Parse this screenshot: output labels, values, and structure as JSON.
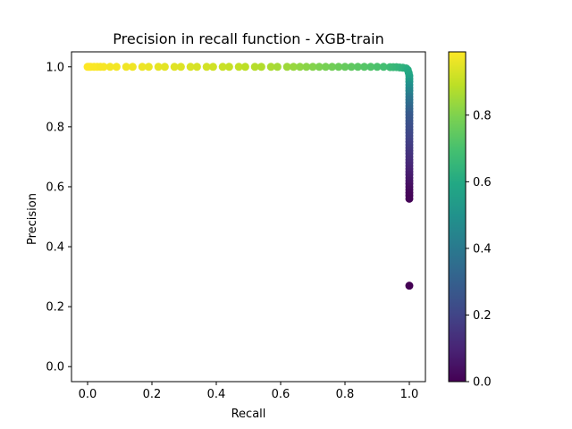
{
  "chart_data": {
    "type": "scatter",
    "title": "Precision in recall function - XGB-train",
    "xlabel": "Recall",
    "ylabel": "Precision",
    "xlim": [
      -0.05,
      1.05
    ],
    "ylim": [
      -0.05,
      1.05
    ],
    "xticks": [
      "0.0",
      "0.2",
      "0.4",
      "0.6",
      "0.8",
      "1.0"
    ],
    "yticks": [
      "0.0",
      "0.2",
      "0.4",
      "0.6",
      "0.8",
      "1.0"
    ],
    "xtick_values": [
      0.0,
      0.2,
      0.4,
      0.6,
      0.8,
      1.0
    ],
    "ytick_values": [
      0.0,
      0.2,
      0.4,
      0.6,
      0.8,
      1.0
    ],
    "grid": false,
    "colormap": "viridis",
    "colorbar": {
      "range": [
        0.0,
        0.99
      ],
      "ticks": [
        "0.0",
        "0.2",
        "0.4",
        "0.6",
        "0.8"
      ],
      "tick_values": [
        0.0,
        0.2,
        0.4,
        0.6,
        0.8
      ]
    },
    "series": [
      {
        "points": [
          {
            "x": 0.0,
            "y": 1.0,
            "c": 0.99
          },
          {
            "x": 0.005,
            "y": 1.0,
            "c": 0.99
          },
          {
            "x": 0.01,
            "y": 1.0,
            "c": 0.99
          },
          {
            "x": 0.02,
            "y": 1.0,
            "c": 0.985
          },
          {
            "x": 0.03,
            "y": 1.0,
            "c": 0.985
          },
          {
            "x": 0.04,
            "y": 1.0,
            "c": 0.98
          },
          {
            "x": 0.05,
            "y": 1.0,
            "c": 0.98
          },
          {
            "x": 0.07,
            "y": 1.0,
            "c": 0.975
          },
          {
            "x": 0.09,
            "y": 1.0,
            "c": 0.975
          },
          {
            "x": 0.12,
            "y": 1.0,
            "c": 0.97
          },
          {
            "x": 0.14,
            "y": 1.0,
            "c": 0.97
          },
          {
            "x": 0.17,
            "y": 1.0,
            "c": 0.965
          },
          {
            "x": 0.19,
            "y": 1.0,
            "c": 0.96
          },
          {
            "x": 0.22,
            "y": 1.0,
            "c": 0.955
          },
          {
            "x": 0.24,
            "y": 1.0,
            "c": 0.95
          },
          {
            "x": 0.27,
            "y": 1.0,
            "c": 0.945
          },
          {
            "x": 0.29,
            "y": 1.0,
            "c": 0.94
          },
          {
            "x": 0.32,
            "y": 1.0,
            "c": 0.935
          },
          {
            "x": 0.34,
            "y": 1.0,
            "c": 0.93
          },
          {
            "x": 0.37,
            "y": 1.0,
            "c": 0.925
          },
          {
            "x": 0.39,
            "y": 1.0,
            "c": 0.92
          },
          {
            "x": 0.42,
            "y": 1.0,
            "c": 0.91
          },
          {
            "x": 0.44,
            "y": 1.0,
            "c": 0.905
          },
          {
            "x": 0.47,
            "y": 1.0,
            "c": 0.9
          },
          {
            "x": 0.49,
            "y": 1.0,
            "c": 0.89
          },
          {
            "x": 0.52,
            "y": 1.0,
            "c": 0.88
          },
          {
            "x": 0.54,
            "y": 1.0,
            "c": 0.875
          },
          {
            "x": 0.57,
            "y": 1.0,
            "c": 0.865
          },
          {
            "x": 0.59,
            "y": 1.0,
            "c": 0.855
          },
          {
            "x": 0.62,
            "y": 1.0,
            "c": 0.845
          },
          {
            "x": 0.64,
            "y": 1.0,
            "c": 0.835
          },
          {
            "x": 0.66,
            "y": 1.0,
            "c": 0.825
          },
          {
            "x": 0.68,
            "y": 1.0,
            "c": 0.815
          },
          {
            "x": 0.7,
            "y": 1.0,
            "c": 0.805
          },
          {
            "x": 0.72,
            "y": 1.0,
            "c": 0.795
          },
          {
            "x": 0.74,
            "y": 1.0,
            "c": 0.785
          },
          {
            "x": 0.76,
            "y": 1.0,
            "c": 0.775
          },
          {
            "x": 0.78,
            "y": 1.0,
            "c": 0.765
          },
          {
            "x": 0.8,
            "y": 1.0,
            "c": 0.755
          },
          {
            "x": 0.82,
            "y": 1.0,
            "c": 0.745
          },
          {
            "x": 0.84,
            "y": 1.0,
            "c": 0.735
          },
          {
            "x": 0.86,
            "y": 1.0,
            "c": 0.725
          },
          {
            "x": 0.88,
            "y": 1.0,
            "c": 0.715
          },
          {
            "x": 0.9,
            "y": 1.0,
            "c": 0.705
          },
          {
            "x": 0.92,
            "y": 1.0,
            "c": 0.69
          },
          {
            "x": 0.94,
            "y": 0.999,
            "c": 0.675
          },
          {
            "x": 0.95,
            "y": 0.999,
            "c": 0.665
          },
          {
            "x": 0.96,
            "y": 0.999,
            "c": 0.655
          },
          {
            "x": 0.97,
            "y": 0.998,
            "c": 0.645
          },
          {
            "x": 0.98,
            "y": 0.997,
            "c": 0.635
          },
          {
            "x": 0.99,
            "y": 0.995,
            "c": 0.625
          },
          {
            "x": 0.995,
            "y": 0.99,
            "c": 0.61
          },
          {
            "x": 0.998,
            "y": 0.98,
            "c": 0.6
          },
          {
            "x": 1.0,
            "y": 0.97,
            "c": 0.58
          },
          {
            "x": 1.0,
            "y": 0.96,
            "c": 0.56
          },
          {
            "x": 1.0,
            "y": 0.95,
            "c": 0.53
          },
          {
            "x": 1.0,
            "y": 0.94,
            "c": 0.5
          },
          {
            "x": 1.0,
            "y": 0.93,
            "c": 0.48
          },
          {
            "x": 1.0,
            "y": 0.92,
            "c": 0.45
          },
          {
            "x": 1.0,
            "y": 0.91,
            "c": 0.43
          },
          {
            "x": 1.0,
            "y": 0.9,
            "c": 0.4
          },
          {
            "x": 1.0,
            "y": 0.89,
            "c": 0.38
          },
          {
            "x": 1.0,
            "y": 0.88,
            "c": 0.36
          },
          {
            "x": 1.0,
            "y": 0.87,
            "c": 0.34
          },
          {
            "x": 1.0,
            "y": 0.86,
            "c": 0.32
          },
          {
            "x": 1.0,
            "y": 0.85,
            "c": 0.3
          },
          {
            "x": 1.0,
            "y": 0.84,
            "c": 0.28
          },
          {
            "x": 1.0,
            "y": 0.83,
            "c": 0.27
          },
          {
            "x": 1.0,
            "y": 0.82,
            "c": 0.26
          },
          {
            "x": 1.0,
            "y": 0.81,
            "c": 0.25
          },
          {
            "x": 1.0,
            "y": 0.8,
            "c": 0.24
          },
          {
            "x": 1.0,
            "y": 0.79,
            "c": 0.23
          },
          {
            "x": 1.0,
            "y": 0.78,
            "c": 0.22
          },
          {
            "x": 1.0,
            "y": 0.77,
            "c": 0.21
          },
          {
            "x": 1.0,
            "y": 0.76,
            "c": 0.2
          },
          {
            "x": 1.0,
            "y": 0.75,
            "c": 0.19
          },
          {
            "x": 1.0,
            "y": 0.74,
            "c": 0.18
          },
          {
            "x": 1.0,
            "y": 0.73,
            "c": 0.17
          },
          {
            "x": 1.0,
            "y": 0.72,
            "c": 0.16
          },
          {
            "x": 1.0,
            "y": 0.71,
            "c": 0.15
          },
          {
            "x": 1.0,
            "y": 0.7,
            "c": 0.14
          },
          {
            "x": 1.0,
            "y": 0.69,
            "c": 0.13
          },
          {
            "x": 1.0,
            "y": 0.68,
            "c": 0.12
          },
          {
            "x": 1.0,
            "y": 0.67,
            "c": 0.11
          },
          {
            "x": 1.0,
            "y": 0.66,
            "c": 0.1
          },
          {
            "x": 1.0,
            "y": 0.65,
            "c": 0.09
          },
          {
            "x": 1.0,
            "y": 0.64,
            "c": 0.08
          },
          {
            "x": 1.0,
            "y": 0.63,
            "c": 0.07
          },
          {
            "x": 1.0,
            "y": 0.62,
            "c": 0.06
          },
          {
            "x": 1.0,
            "y": 0.61,
            "c": 0.05
          },
          {
            "x": 1.0,
            "y": 0.6,
            "c": 0.04
          },
          {
            "x": 1.0,
            "y": 0.59,
            "c": 0.03
          },
          {
            "x": 1.0,
            "y": 0.58,
            "c": 0.02
          },
          {
            "x": 1.0,
            "y": 0.57,
            "c": 0.015
          },
          {
            "x": 1.0,
            "y": 0.56,
            "c": 0.01
          },
          {
            "x": 1.0,
            "y": 0.27,
            "c": 0.0
          }
        ]
      }
    ]
  }
}
